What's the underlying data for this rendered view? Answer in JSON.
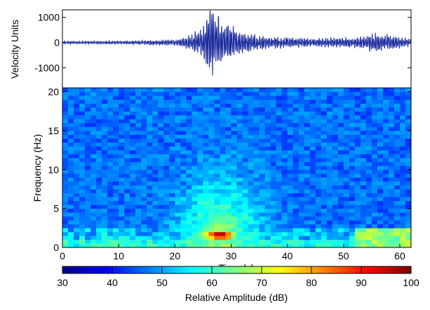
{
  "chart_data": [
    {
      "type": "line",
      "panel": "waveform",
      "title": "",
      "xlabel": "",
      "ylabel": "Velocity Units",
      "xlim": [
        0,
        62
      ],
      "ylim": [
        -1800,
        1300
      ],
      "yticks": [
        1000,
        0,
        -1000
      ],
      "ytick_labels": [
        "1000",
        "0",
        "-1000"
      ],
      "color": "#1a2a9c",
      "envelope": [
        {
          "t": 0,
          "amp": 60
        },
        {
          "t": 10,
          "amp": 70
        },
        {
          "t": 20,
          "amp": 120
        },
        {
          "t": 22,
          "amp": 250
        },
        {
          "t": 24,
          "amp": 500
        },
        {
          "t": 25.5,
          "amp": 1000
        },
        {
          "t": 26.5,
          "amp": 1500
        },
        {
          "t": 27.5,
          "amp": 1200
        },
        {
          "t": 29,
          "amp": 850
        },
        {
          "t": 32,
          "amp": 500
        },
        {
          "t": 36,
          "amp": 280
        },
        {
          "t": 45,
          "amp": 170
        },
        {
          "t": 53,
          "amp": 260
        },
        {
          "t": 56,
          "amp": 420
        },
        {
          "t": 59,
          "amp": 300
        },
        {
          "t": 62,
          "amp": 150
        }
      ]
    },
    {
      "type": "heatmap",
      "panel": "spectrogram",
      "title": "",
      "xlabel": "Time (s)",
      "ylabel": "Frequency (Hz)",
      "xlim": [
        0,
        62
      ],
      "ylim": [
        0,
        20.5
      ],
      "xticks": [
        0,
        10,
        20,
        30,
        40,
        50,
        60
      ],
      "xtick_labels": [
        "0",
        "10",
        "20",
        "30",
        "40",
        "50",
        "60"
      ],
      "yticks": [
        0,
        5,
        10,
        15,
        20
      ],
      "ytick_labels": [
        "0",
        "5",
        "10",
        "15",
        "20"
      ],
      "cols": 62,
      "rows": 41,
      "value_range": [
        30,
        100
      ],
      "energy_features": [
        {
          "name": "low-frequency band",
          "freq_hz": [
            0,
            2.5
          ],
          "time_s": [
            0,
            62
          ],
          "level_db": 60
        },
        {
          "name": "event core",
          "center_time_s": 28,
          "center_freq_hz": 1.5,
          "peak_db": 97
        },
        {
          "name": "event plume",
          "time_s": [
            22,
            36
          ],
          "freq_hz": [
            2,
            11
          ],
          "level_db": 55
        }
      ]
    },
    {
      "type": "colorbar",
      "panel": "colorbar",
      "label": "Relative Amplitude  (dB)",
      "range": [
        30,
        100
      ],
      "ticks": [
        30,
        40,
        50,
        60,
        70,
        80,
        90,
        100
      ],
      "tick_labels": [
        "30",
        "40",
        "50",
        "60",
        "70",
        "80",
        "90",
        "100"
      ],
      "colormap": [
        "#00008f",
        "#0000ff",
        "#00ffff",
        "#ffff00",
        "#ff0000",
        "#800000"
      ]
    }
  ]
}
